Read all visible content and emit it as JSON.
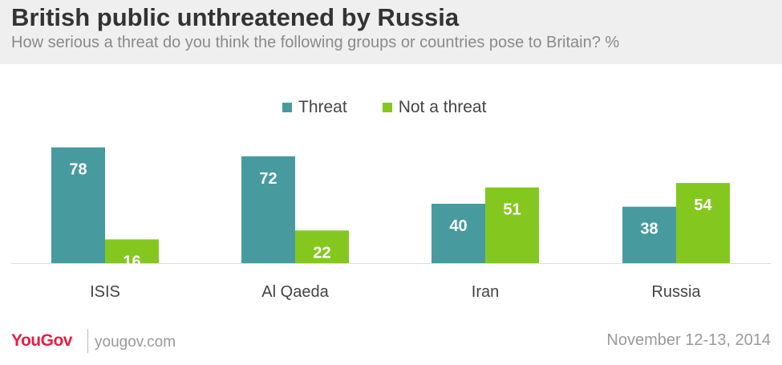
{
  "header": {
    "title": "British public unthreatened by Russia",
    "subtitle": "How serious a threat do you think the following groups or countries pose to Britain? %"
  },
  "legend": {
    "threat_label": "Threat",
    "not_threat_label": "Not a threat"
  },
  "colors": {
    "threat": "#479b9e",
    "not_threat": "#84c81f",
    "header_bg": "#efefef",
    "brand": "#e41e44"
  },
  "footer": {
    "logo": "YouGov",
    "site": "yougov.com",
    "date": "November 12-13, 2014"
  },
  "chart_data": {
    "type": "bar",
    "categories": [
      "ISIS",
      "Al Qaeda",
      "Iran",
      "Russia"
    ],
    "series": [
      {
        "name": "Threat",
        "values": [
          78,
          72,
          40,
          38
        ]
      },
      {
        "name": "Not a threat",
        "values": [
          16,
          22,
          51,
          54
        ]
      }
    ],
    "ylim": [
      0,
      100
    ],
    "grid": false,
    "legend_position": "top-center",
    "data_labels": true
  }
}
